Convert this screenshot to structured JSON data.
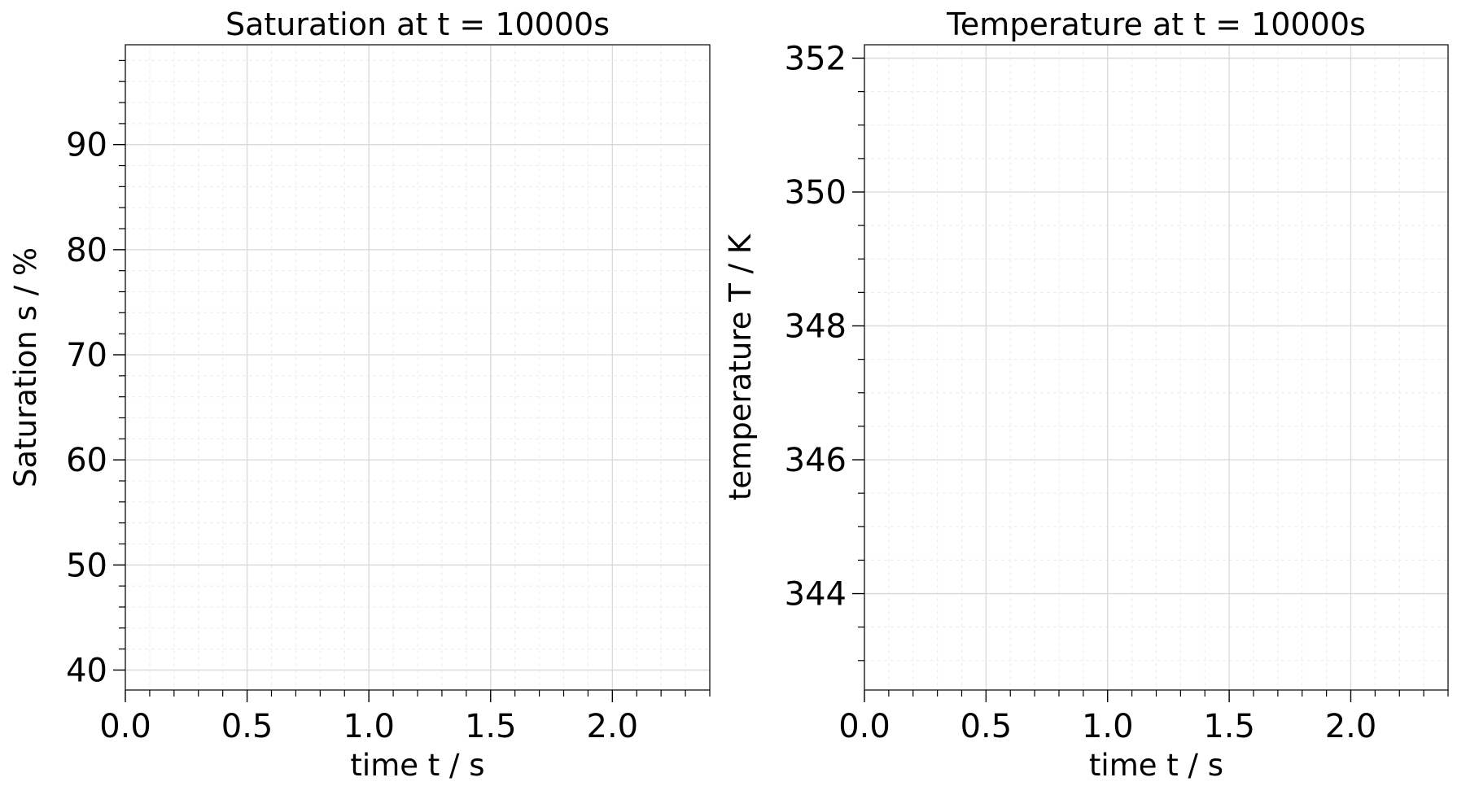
{
  "chart_data": [
    {
      "type": "line",
      "title": "Saturation at t = 10000s",
      "xlabel": "time t / s",
      "ylabel": "Saturation s / %",
      "xlim": [
        0,
        2.4
      ],
      "ylim": [
        38.1,
        99.5
      ],
      "xticks": [
        {
          "value": 0,
          "label": "0.0"
        },
        0.5,
        {
          "value": 1,
          "label": "1.0"
        },
        1.5,
        {
          "value": 2,
          "label": "2.0"
        }
      ],
      "yticks": [
        40,
        50,
        60,
        70,
        80,
        90
      ],
      "minor_xticks": [
        0.1,
        0.2,
        0.3,
        0.4,
        0.6,
        0.7,
        0.8,
        0.9,
        1.1,
        1.2,
        1.3,
        1.4,
        1.6,
        1.7,
        1.8,
        1.9,
        2.1,
        2.2,
        2.3,
        2.4
      ],
      "minor_yticks": [
        42,
        44,
        46,
        48,
        52,
        54,
        56,
        58,
        62,
        64,
        66,
        68,
        72,
        74,
        76,
        78,
        82,
        84,
        86,
        88,
        92,
        94,
        96,
        98
      ],
      "grid": true
    },
    {
      "type": "line",
      "title": "Temperature at t = 10000s",
      "xlabel": "time t / s",
      "ylabel": "temperature T / K",
      "xlim": [
        0,
        2.4
      ],
      "ylim": [
        342.56,
        352.2
      ],
      "xticks": [
        {
          "value": 0,
          "label": "0.0"
        },
        0.5,
        {
          "value": 1,
          "label": "1.0"
        },
        1.5,
        {
          "value": 2,
          "label": "2.0"
        }
      ],
      "yticks": [
        344,
        346,
        348,
        350,
        352
      ],
      "minor_xticks": [
        0.1,
        0.2,
        0.3,
        0.4,
        0.6,
        0.7,
        0.8,
        0.9,
        1.1,
        1.2,
        1.3,
        1.4,
        1.6,
        1.7,
        1.8,
        1.9,
        2.1,
        2.2,
        2.3,
        2.4
      ],
      "minor_yticks": [
        343,
        343.5,
        344.5,
        345,
        345.5,
        346.5,
        347,
        347.5,
        348.5,
        349,
        349.5,
        350.5,
        351,
        351.5
      ],
      "grid": true
    }
  ]
}
